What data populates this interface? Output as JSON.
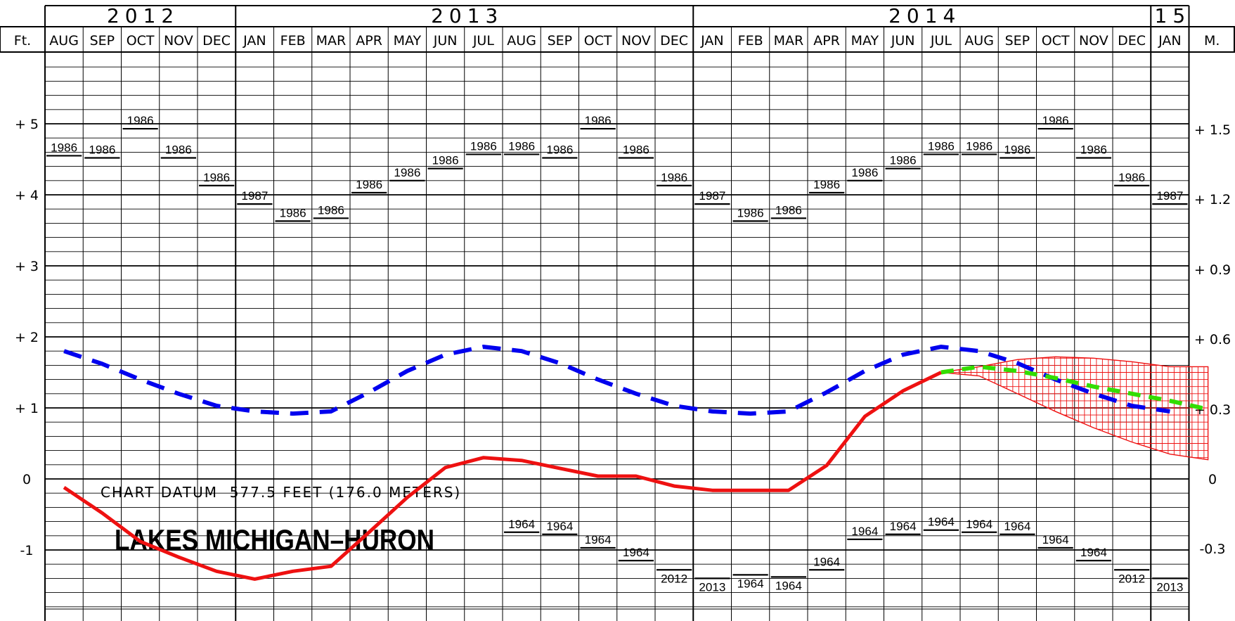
{
  "chart_data": {
    "type": "line",
    "title": "LAKES MICHIGAN–HURON",
    "datum_note": "CHART DATUM  577.5 FEET (176.0 METERS)",
    "year_labels": [
      "2012",
      "2013",
      "2014",
      "15"
    ],
    "year_month_counts": [
      5,
      12,
      12,
      1
    ],
    "months": [
      "AUG",
      "SEP",
      "OCT",
      "NOV",
      "DEC",
      "JAN",
      "FEB",
      "MAR",
      "APR",
      "MAY",
      "JUN",
      "JUL",
      "AUG",
      "SEP",
      "OCT",
      "NOV",
      "DEC",
      "JAN",
      "FEB",
      "MAR",
      "APR",
      "MAY",
      "JUN",
      "JUL",
      "AUG",
      "SEP",
      "OCT",
      "NOV",
      "DEC",
      "JAN"
    ],
    "left_axis_label": "Ft.",
    "right_axis_label": "M.",
    "left_ticks": [
      {
        "value": 5,
        "label": "+ 5"
      },
      {
        "value": 4,
        "label": "+ 4"
      },
      {
        "value": 3,
        "label": "+ 3"
      },
      {
        "value": 2,
        "label": "+ 2"
      },
      {
        "value": 1,
        "label": "+ 1"
      },
      {
        "value": 0,
        "label": "0"
      },
      {
        "value": -1,
        "label": "-1"
      }
    ],
    "right_ticks": [
      {
        "value_ft": 4.92,
        "label": "+ 1.5"
      },
      {
        "value_ft": 3.94,
        "label": "+ 1.2"
      },
      {
        "value_ft": 2.95,
        "label": "+ 0.9"
      },
      {
        "value_ft": 1.97,
        "label": "+ 0.6"
      },
      {
        "value_ft": 0.98,
        "label": "+ 0.3"
      },
      {
        "value_ft": 0,
        "label": "0"
      },
      {
        "value_ft": -0.98,
        "label": "-0.3"
      }
    ],
    "ylim": [
      -1.9,
      5.8
    ],
    "record_highs": {
      "values": [
        4.55,
        4.52,
        4.93,
        4.52,
        4.13,
        3.87,
        3.63,
        3.67,
        4.03,
        4.2,
        4.37,
        4.57,
        4.57,
        4.52,
        4.93,
        4.52,
        4.13,
        3.87,
        3.63,
        3.67,
        4.03,
        4.2,
        4.37,
        4.57,
        4.57,
        4.52,
        4.93,
        4.52,
        4.13,
        3.87
      ],
      "years": [
        "1986",
        "1986",
        "1986",
        "1986",
        "1986",
        "1987",
        "1986",
        "1986",
        "1986",
        "1986",
        "1986",
        "1986",
        "1986",
        "1986",
        "1986",
        "1986",
        "1986",
        "1987",
        "1986",
        "1986",
        "1986",
        "1986",
        "1986",
        "1986",
        "1986",
        "1986",
        "1986",
        "1986",
        "1986",
        "1987"
      ]
    },
    "record_lows": {
      "values": [
        null,
        null,
        null,
        null,
        null,
        null,
        null,
        null,
        null,
        null,
        null,
        null,
        -0.75,
        -0.78,
        -0.97,
        -1.15,
        -1.28,
        -1.4,
        -1.35,
        -1.38,
        -1.28,
        -0.85,
        -0.78,
        -0.72,
        -0.75,
        -0.78,
        -0.97,
        -1.15,
        -1.28,
        -1.4
      ],
      "years": [
        null,
        null,
        null,
        null,
        null,
        null,
        null,
        null,
        null,
        null,
        null,
        null,
        "1964",
        "1964",
        "1964",
        "1964",
        "2012",
        "2013",
        "1964",
        "1964",
        "1964",
        "1964",
        "1964",
        "1964",
        "1964",
        "1964",
        "1964",
        "1964",
        "2012",
        "2013"
      ]
    },
    "series": [
      {
        "key": "longterm_average",
        "color": "#0000ee",
        "style": "dashed",
        "values": [
          1.8,
          1.62,
          1.4,
          1.2,
          1.03,
          0.95,
          0.92,
          0.95,
          1.22,
          1.52,
          1.75,
          1.86,
          1.8,
          1.63,
          1.4,
          1.2,
          1.03,
          0.95,
          0.92,
          0.95,
          1.22,
          1.52,
          1.75,
          1.86,
          1.8,
          1.63,
          1.4,
          1.2,
          1.03,
          0.95
        ]
      },
      {
        "key": "recorded",
        "color": "#ee1111",
        "style": "solid",
        "values": [
          -0.12,
          -0.48,
          -0.88,
          -1.1,
          -1.3,
          -1.41,
          -1.3,
          -1.23,
          -0.75,
          -0.26,
          0.16,
          0.3,
          0.26,
          0.15,
          0.04,
          0.04,
          -0.1,
          -0.16,
          -0.16,
          -0.16,
          0.19,
          0.88,
          1.24,
          1.5
        ]
      },
      {
        "key": "forecast",
        "color": "#33dd00",
        "style": "dashed",
        "start_index": 23,
        "values": [
          1.5,
          1.58,
          1.52,
          1.42,
          1.3,
          1.2,
          1.1,
          0.98
        ]
      }
    ],
    "forecast_range": {
      "color": "#ee1111",
      "start_index": 23,
      "upper": [
        1.5,
        1.58,
        1.68,
        1.72,
        1.7,
        1.65,
        1.58,
        1.58
      ],
      "lower": [
        1.5,
        1.45,
        1.2,
        0.95,
        0.72,
        0.52,
        0.35,
        0.27
      ]
    }
  }
}
